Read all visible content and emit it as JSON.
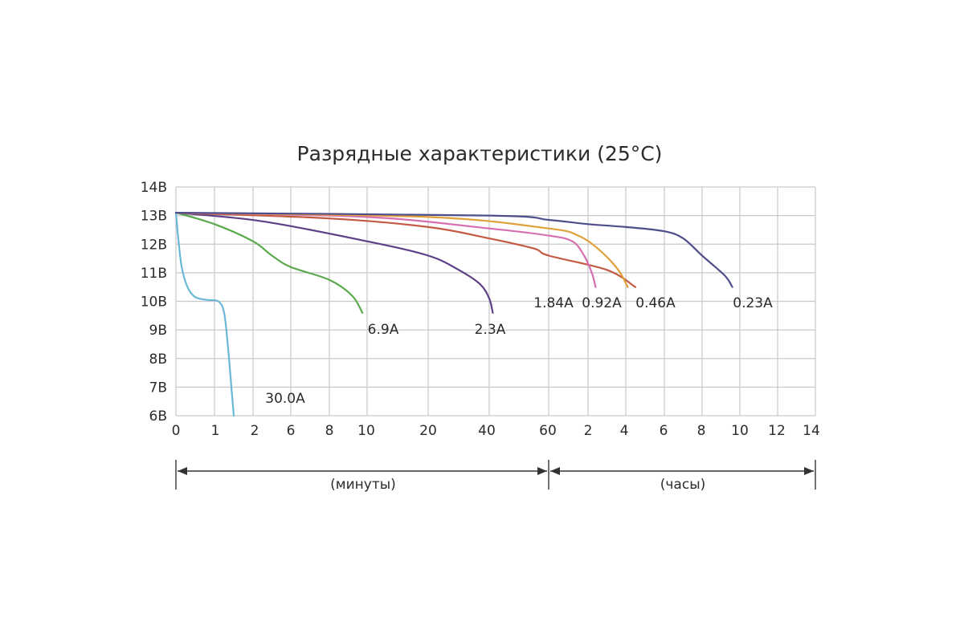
{
  "chart_data": {
    "type": "line",
    "title": "Разрядные характеристики (25°C)",
    "y_ticks": [
      "14В",
      "13В",
      "12В",
      "11В",
      "10В",
      "9В",
      "8В",
      "7В",
      "6В"
    ],
    "ylim": [
      6,
      14
    ],
    "x_ticks": [
      "0",
      "1",
      "2",
      "6",
      "8",
      "10",
      "20",
      "40",
      "60",
      "2",
      "4",
      "6",
      "8",
      "10",
      "12",
      "14"
    ],
    "segments": [
      {
        "label": "(минуты)"
      },
      {
        "label": "(часы)"
      }
    ],
    "grid": true,
    "series": [
      {
        "name": "30.0A",
        "color": "#6ab7d6",
        "points": [
          [
            0,
            13.1
          ],
          [
            0.06,
            12.2
          ],
          [
            0.15,
            11.2
          ],
          [
            0.3,
            10.5
          ],
          [
            0.5,
            10.15
          ],
          [
            0.8,
            10.05
          ],
          [
            1.1,
            10.0
          ],
          [
            1.25,
            9.6
          ],
          [
            1.35,
            8.4
          ],
          [
            1.45,
            6.8
          ],
          [
            1.5,
            6.0
          ]
        ]
      },
      {
        "name": "6.9A",
        "color": "#5aaa4c",
        "points": [
          [
            0,
            13.1
          ],
          [
            1,
            12.7
          ],
          [
            2,
            12.1
          ],
          [
            4,
            11.6
          ],
          [
            6,
            11.2
          ],
          [
            8,
            10.75
          ],
          [
            9.2,
            10.2
          ],
          [
            9.75,
            9.6
          ]
        ]
      },
      {
        "name": "2.3A",
        "color": "#5c3f86",
        "points": [
          [
            0,
            13.1
          ],
          [
            3,
            12.8
          ],
          [
            10,
            12.1
          ],
          [
            20,
            11.6
          ],
          [
            30,
            11.1
          ],
          [
            37,
            10.6
          ],
          [
            40,
            10.1
          ],
          [
            41.2,
            9.6
          ]
        ]
      },
      {
        "name": "1.84A",
        "color": "#c45a43",
        "points": [
          [
            0,
            13.1
          ],
          [
            8,
            12.9
          ],
          [
            20,
            12.6
          ],
          [
            40,
            12.2
          ],
          [
            55,
            11.85
          ],
          [
            60,
            11.6
          ],
          [
            63,
            11.1
          ],
          [
            64.5,
            10.5
          ]
        ]
      },
      {
        "name": "0.92A",
        "color": "#d66fb0",
        "points": [
          [
            0,
            13.1
          ],
          [
            10,
            12.95
          ],
          [
            40,
            12.55
          ],
          [
            60,
            12.3
          ],
          [
            61.2,
            12.1
          ],
          [
            61.8,
            11.6
          ],
          [
            62.2,
            11.0
          ],
          [
            62.4,
            10.5
          ]
        ]
      },
      {
        "name": "0.46A",
        "color": "#e0a03a",
        "points": [
          [
            0,
            13.1
          ],
          [
            20,
            12.95
          ],
          [
            60,
            12.55
          ],
          [
            61.5,
            12.3
          ],
          [
            62.6,
            11.8
          ],
          [
            63.6,
            11.1
          ],
          [
            64.1,
            10.5
          ]
        ]
      },
      {
        "name": "0.23A",
        "color": "#4f4e8c",
        "points": [
          [
            0,
            13.1
          ],
          [
            40,
            13.0
          ],
          [
            60,
            12.85
          ],
          [
            62,
            12.7
          ],
          [
            64,
            12.6
          ],
          [
            66,
            12.45
          ],
          [
            67,
            12.2
          ],
          [
            68,
            11.6
          ],
          [
            69.2,
            10.9
          ],
          [
            69.6,
            10.5
          ]
        ]
      }
    ],
    "series_labels": [
      "30.0A",
      "6.9A",
      "2.3A",
      "1.84A",
      "0.92A",
      "0.46A",
      "0.23A"
    ]
  }
}
